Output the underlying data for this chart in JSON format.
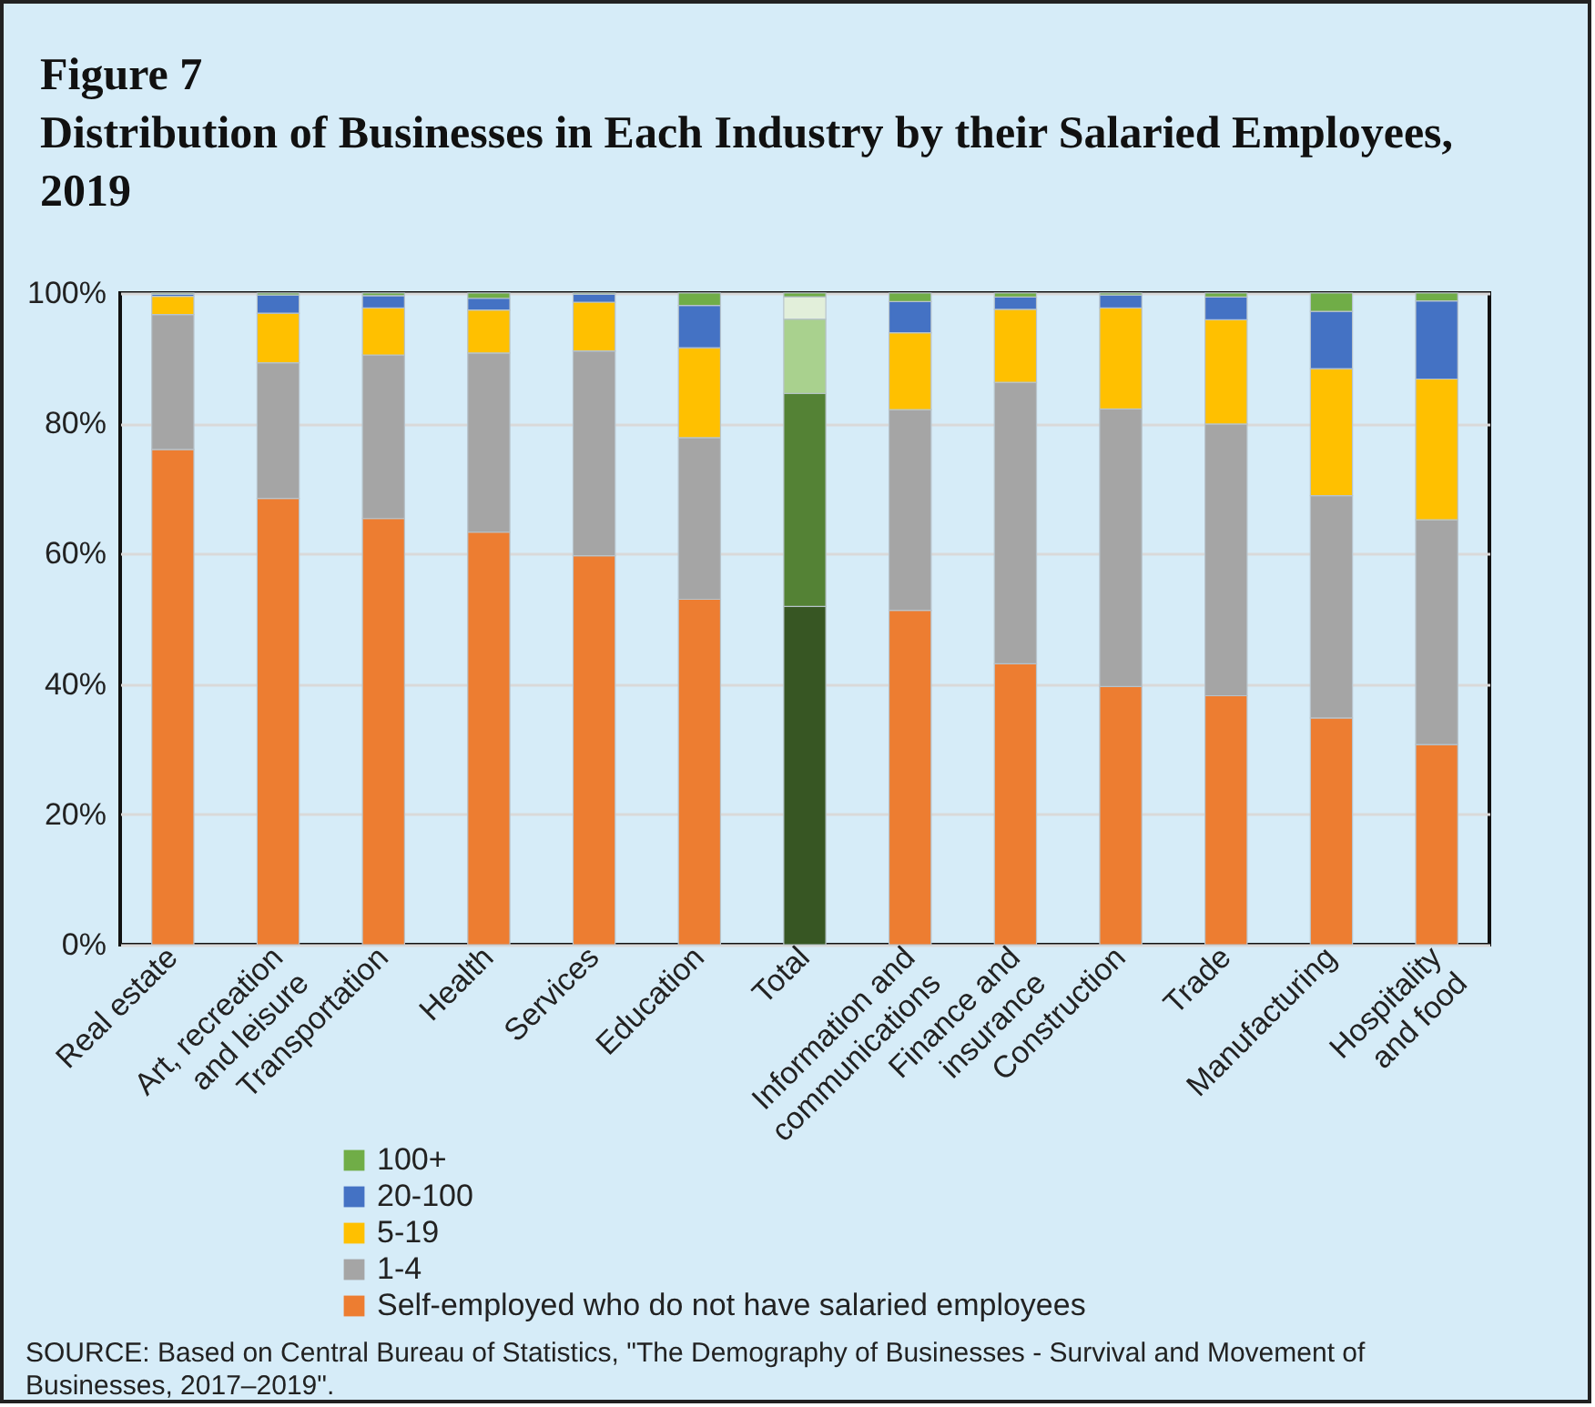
{
  "chart_data": {
    "type": "bar",
    "title": "Figure 7",
    "subtitle": "Distribution of Businesses in Each Industry by their Salaried Employees, 2019",
    "categories": [
      "Real estate",
      "Art, recreation\nand leisure",
      "Transportation",
      "Health",
      "Services",
      "Education",
      "Total",
      "Information and\ncommunications",
      "Finance and\ninsurance",
      "Construction",
      "Trade",
      "Manufacturing",
      "Hospitality\nand food"
    ],
    "series": [
      {
        "name": "Self-employed who do not have salaried employees",
        "color": "#ed7d31",
        "colors": [
          "#ed7d31",
          "#ed7d31",
          "#ed7d31",
          "#ed7d31",
          "#ed7d31",
          "#ed7d31",
          "#375623",
          "#ed7d31",
          "#ed7d31",
          "#ed7d31",
          "#ed7d31",
          "#ed7d31",
          "#ed7d31"
        ],
        "values": [
          76.0,
          68.5,
          65.4,
          63.3,
          59.7,
          53.0,
          51.9,
          51.3,
          43.1,
          39.6,
          38.2,
          34.8,
          30.7
        ]
      },
      {
        "name": "1-4",
        "color": "#a5a5a5",
        "colors": [
          "#a5a5a5",
          "#a5a5a5",
          "#a5a5a5",
          "#a5a5a5",
          "#a5a5a5",
          "#a5a5a5",
          "#548235",
          "#a5a5a5",
          "#a5a5a5",
          "#a5a5a5",
          "#a5a5a5",
          "#a5a5a5",
          "#a5a5a5"
        ],
        "values": [
          20.7,
          20.8,
          25.1,
          27.5,
          31.4,
          24.8,
          32.7,
          30.8,
          43.2,
          42.6,
          41.7,
          34.1,
          34.5
        ]
      },
      {
        "name": "5-19",
        "color": "#ffc000",
        "colors": [
          "#ffc000",
          "#ffc000",
          "#ffc000",
          "#ffc000",
          "#ffc000",
          "#ffc000",
          "#a9d18e",
          "#ffc000",
          "#ffc000",
          "#ffc000",
          "#ffc000",
          "#ffc000",
          "#ffc000"
        ],
        "values": [
          2.8,
          7.6,
          7.2,
          6.6,
          7.5,
          13.8,
          11.4,
          11.8,
          11.2,
          15.5,
          16.0,
          19.5,
          21.6
        ]
      },
      {
        "name": "20-100",
        "color": "#4472c4",
        "colors": [
          "#4472c4",
          "#4472c4",
          "#4472c4",
          "#4472c4",
          "#4472c4",
          "#4472c4",
          "#e2efda",
          "#4472c4",
          "#4472c4",
          "#4472c4",
          "#4472c4",
          "#4472c4",
          "#4472c4"
        ],
        "values": [
          0.3,
          2.8,
          1.9,
          1.8,
          1.2,
          6.5,
          3.4,
          4.8,
          1.9,
          2.0,
          3.5,
          8.8,
          12.0
        ]
      },
      {
        "name": "100+",
        "color": "#70ad47",
        "values": [
          0.2,
          0.3,
          0.4,
          0.8,
          0.2,
          1.9,
          0.6,
          1.3,
          0.6,
          0.3,
          0.6,
          2.8,
          1.2
        ]
      }
    ],
    "stacked": true,
    "ylim": [
      0,
      100
    ],
    "yticks": [
      {
        "value": 0,
        "label": "0%"
      },
      {
        "value": 20,
        "label": "20%"
      },
      {
        "value": 40,
        "label": "40%"
      },
      {
        "value": 60,
        "label": "60%"
      },
      {
        "value": 80,
        "label": "80%"
      },
      {
        "value": 100,
        "label": "100%"
      }
    ],
    "grid": "y",
    "legend": "bottom",
    "annotations": [
      "SOURCE: Based on Central Bureau of Statistics, \"The Demography of Businesses - Survival and Movement of Businesses, 2017–2019\"."
    ]
  }
}
